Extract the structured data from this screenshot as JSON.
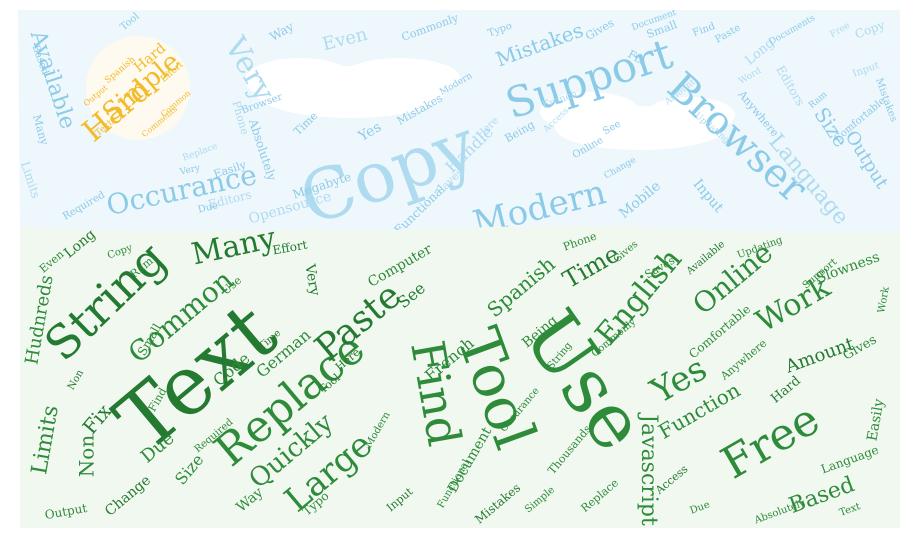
{
  "palette": {
    "sky": "#8ccbe8",
    "sky_light": "#aedbf0",
    "sun": "#f2bb2c",
    "grass": "#2e8b3a",
    "grass_dark": "#247a30",
    "grass_bg": "#f1f8f0",
    "sky_bg": "#eef7fc"
  },
  "sun_words": [
    {
      "t": "Hard"
    },
    {
      "t": "Simple"
    },
    {
      "t": "Hard"
    },
    {
      "t": "Spanish"
    },
    {
      "t": "Effort"
    },
    {
      "t": "Comments"
    },
    {
      "t": "Output"
    },
    {
      "t": "Text"
    },
    {
      "t": "Common"
    }
  ],
  "sky_words": [
    {
      "t": "Copy"
    },
    {
      "t": "Support"
    },
    {
      "t": "Browser"
    },
    {
      "t": "Very"
    },
    {
      "t": "Occurance"
    },
    {
      "t": "Modern"
    },
    {
      "t": "Language"
    },
    {
      "t": "Available"
    },
    {
      "t": "Mistakes"
    },
    {
      "t": "Even"
    },
    {
      "t": "Size"
    },
    {
      "t": "Output"
    },
    {
      "t": "Handle"
    },
    {
      "t": "Mobile"
    },
    {
      "t": "Input"
    },
    {
      "t": "Opensource"
    },
    {
      "t": "Megabyte"
    },
    {
      "t": "Absolutely"
    },
    {
      "t": "Editors"
    },
    {
      "t": "Commonly"
    },
    {
      "t": "Way"
    },
    {
      "t": "Limits"
    },
    {
      "t": "Many"
    },
    {
      "t": "Tool"
    },
    {
      "t": "Long"
    },
    {
      "t": "Gives"
    },
    {
      "t": "Yes"
    },
    {
      "t": "Phone"
    },
    {
      "t": "Easily"
    },
    {
      "t": "Time"
    },
    {
      "t": "Copy"
    },
    {
      "t": "Small"
    },
    {
      "t": "Fix"
    },
    {
      "t": "Access"
    },
    {
      "t": "Find"
    },
    {
      "t": "Paste"
    },
    {
      "t": "Amount"
    },
    {
      "t": "Typo"
    },
    {
      "t": "Documents"
    },
    {
      "t": "Here"
    },
    {
      "t": "Document"
    },
    {
      "t": "Functional"
    },
    {
      "t": "Free"
    },
    {
      "t": "Required"
    },
    {
      "t": "Anywhere"
    },
    {
      "t": "Replace"
    },
    {
      "t": "Being"
    },
    {
      "t": "See"
    },
    {
      "t": "French"
    },
    {
      "t": "Mistakes"
    },
    {
      "t": "Due"
    },
    {
      "t": "Saves"
    },
    {
      "t": "Online"
    },
    {
      "t": "Based"
    },
    {
      "t": "Editors"
    },
    {
      "t": "Modern"
    },
    {
      "t": "Change"
    },
    {
      "t": "Updating"
    },
    {
      "t": "Ram"
    },
    {
      "t": "Mistakes"
    },
    {
      "t": "Input"
    },
    {
      "t": "Browser"
    },
    {
      "t": "Very"
    },
    {
      "t": "Word"
    },
    {
      "t": "Comfortable"
    }
  ],
  "grass_words": [
    {
      "t": "Text"
    },
    {
      "t": "Use"
    },
    {
      "t": "Tool"
    },
    {
      "t": "Replace"
    },
    {
      "t": "String"
    },
    {
      "t": "Find"
    },
    {
      "t": "Free"
    },
    {
      "t": "Large"
    },
    {
      "t": "Paste"
    },
    {
      "t": "Yes"
    },
    {
      "t": "Work"
    },
    {
      "t": "English"
    },
    {
      "t": "Many"
    },
    {
      "t": "Common"
    },
    {
      "t": "Online"
    },
    {
      "t": "Quickly"
    },
    {
      "t": "Time"
    },
    {
      "t": "Based"
    },
    {
      "t": "Function"
    },
    {
      "t": "Spanish"
    },
    {
      "t": "Amount"
    },
    {
      "t": "Javascript"
    },
    {
      "t": "Code"
    },
    {
      "t": "Limits"
    },
    {
      "t": "Fix"
    },
    {
      "t": "Hudnreds"
    },
    {
      "t": "Non"
    },
    {
      "t": "Due"
    },
    {
      "t": "See"
    },
    {
      "t": "French"
    },
    {
      "t": "Computer"
    },
    {
      "t": "German"
    },
    {
      "t": "Very"
    },
    {
      "t": "Size"
    },
    {
      "t": "Being"
    },
    {
      "t": "Document"
    },
    {
      "t": "Change"
    },
    {
      "t": "Slowness"
    },
    {
      "t": "Easily"
    },
    {
      "t": "Gives"
    },
    {
      "t": "Hard"
    },
    {
      "t": "Language"
    },
    {
      "t": "Way"
    },
    {
      "t": "Comfortable"
    },
    {
      "t": "Long"
    },
    {
      "t": "Ram"
    },
    {
      "t": "Small"
    },
    {
      "t": "Anywhere"
    },
    {
      "t": "Effort"
    },
    {
      "t": "Typo"
    },
    {
      "t": "Copy"
    },
    {
      "t": "Use"
    },
    {
      "t": "Mistakes"
    },
    {
      "t": "Replace"
    },
    {
      "t": "Saves"
    },
    {
      "t": "Thousands"
    },
    {
      "t": "Access"
    },
    {
      "t": "Updating"
    },
    {
      "t": "Absolutely"
    },
    {
      "t": "Output"
    },
    {
      "t": "Here"
    },
    {
      "t": "Even"
    },
    {
      "t": "Phone"
    },
    {
      "t": "Commonly"
    },
    {
      "t": "Available"
    },
    {
      "t": "Support"
    },
    {
      "t": "Simple"
    },
    {
      "t": "Required"
    },
    {
      "t": "Input"
    },
    {
      "t": "Gives"
    },
    {
      "t": "Modern"
    },
    {
      "t": "Work"
    },
    {
      "t": "Time"
    },
    {
      "t": "Due"
    },
    {
      "t": "String"
    },
    {
      "t": "Find"
    },
    {
      "t": "Tool"
    },
    {
      "t": "Occurance"
    },
    {
      "t": "Functional"
    },
    {
      "t": "Text"
    },
    {
      "t": "Non"
    },
    {
      "t": "Large"
    },
    {
      "t": "Code"
    },
    {
      "t": "Browser"
    },
    {
      "t": "Comments"
    }
  ]
}
